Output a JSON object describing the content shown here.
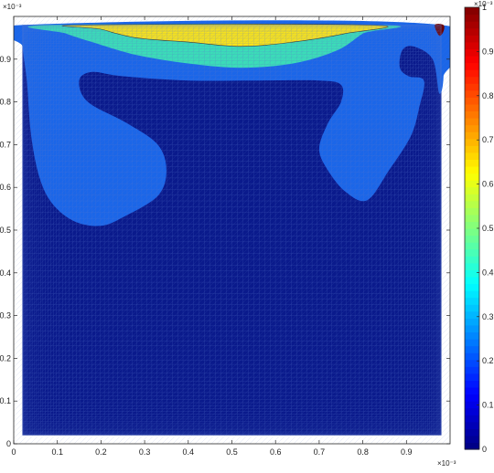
{
  "chart_data": {
    "type": "heatmap",
    "title": "",
    "xlabel": "",
    "ylabel": "",
    "xlim": [
      0,
      1
    ],
    "ylim": [
      0,
      1
    ],
    "x_exponent_label": "×10⁻³",
    "y_exponent_label": "×10⁻³",
    "x_ticks": [
      "0",
      "0.1",
      "0.2",
      "0.3",
      "0.4",
      "0.5",
      "0.6",
      "0.7",
      "0.8",
      "0.9"
    ],
    "y_ticks": [
      "0",
      "0.1",
      "0.2",
      "0.3",
      "0.4",
      "0.5",
      "0.6",
      "0.7",
      "0.8",
      "0.9"
    ],
    "colorbar": {
      "label": "×10⁻³",
      "range": [
        0,
        1
      ],
      "ticks": [
        "0",
        "0.1",
        "0.2",
        "0.3",
        "0.4",
        "0.5",
        "0.6",
        "0.7",
        "0.8",
        "0.9",
        "1"
      ],
      "colormap": "jet"
    },
    "grid": true,
    "levels": {
      "background": 0.0,
      "outer_band": 0.16,
      "middle_band": 0.36,
      "top_region": 0.63,
      "corner_peak": 1.0
    },
    "colors": {
      "background": "#0a1a8c",
      "outer_band": "#1b66e8",
      "middle_band": "#3bdcb8",
      "top_region": "#f8e31c",
      "corner_peak": "#6b0000",
      "mesh_lines": "#5a78cc"
    },
    "regions": [
      {
        "name": "outer_band",
        "value": 0.16,
        "outline": [
          [
            0.02,
            0.98
          ],
          [
            0.98,
            0.98
          ],
          [
            0.985,
            0.86
          ],
          [
            0.975,
            0.82
          ],
          [
            0.96,
            0.9
          ],
          [
            0.915,
            0.93
          ],
          [
            0.89,
            0.92
          ],
          [
            0.885,
            0.88
          ],
          [
            0.905,
            0.86
          ],
          [
            0.94,
            0.85
          ],
          [
            0.93,
            0.79
          ],
          [
            0.91,
            0.72
          ],
          [
            0.86,
            0.64
          ],
          [
            0.81,
            0.57
          ],
          [
            0.76,
            0.59
          ],
          [
            0.72,
            0.64
          ],
          [
            0.7,
            0.69
          ],
          [
            0.72,
            0.75
          ],
          [
            0.75,
            0.8
          ],
          [
            0.75,
            0.84
          ],
          [
            0.7,
            0.85
          ],
          [
            0.55,
            0.85
          ],
          [
            0.4,
            0.85
          ],
          [
            0.25,
            0.86
          ],
          [
            0.18,
            0.87
          ],
          [
            0.15,
            0.85
          ],
          [
            0.17,
            0.8
          ],
          [
            0.26,
            0.75
          ],
          [
            0.33,
            0.7
          ],
          [
            0.35,
            0.64
          ],
          [
            0.33,
            0.58
          ],
          [
            0.25,
            0.53
          ],
          [
            0.2,
            0.51
          ],
          [
            0.14,
            0.52
          ],
          [
            0.09,
            0.56
          ],
          [
            0.06,
            0.62
          ],
          [
            0.04,
            0.72
          ],
          [
            0.03,
            0.85
          ],
          [
            0.02,
            0.93
          ]
        ]
      },
      {
        "name": "middle_band",
        "value": 0.36,
        "outline": [
          [
            0.08,
            0.98
          ],
          [
            0.84,
            0.98
          ],
          [
            0.8,
            0.96
          ],
          [
            0.74,
            0.92
          ],
          [
            0.64,
            0.89
          ],
          [
            0.52,
            0.88
          ],
          [
            0.4,
            0.89
          ],
          [
            0.28,
            0.91
          ],
          [
            0.18,
            0.94
          ],
          [
            0.12,
            0.96
          ]
        ]
      },
      {
        "name": "top_region",
        "value": 0.63,
        "outline": [
          [
            0.15,
            0.98
          ],
          [
            0.82,
            0.98
          ],
          [
            0.76,
            0.96
          ],
          [
            0.64,
            0.94
          ],
          [
            0.52,
            0.93
          ],
          [
            0.4,
            0.94
          ],
          [
            0.28,
            0.95
          ],
          [
            0.2,
            0.97
          ]
        ]
      },
      {
        "name": "corner_peak",
        "value": 1.0,
        "outline": [
          [
            0.965,
            0.98
          ],
          [
            0.985,
            0.98
          ],
          [
            0.985,
            0.965
          ],
          [
            0.975,
            0.955
          ]
        ]
      }
    ]
  }
}
